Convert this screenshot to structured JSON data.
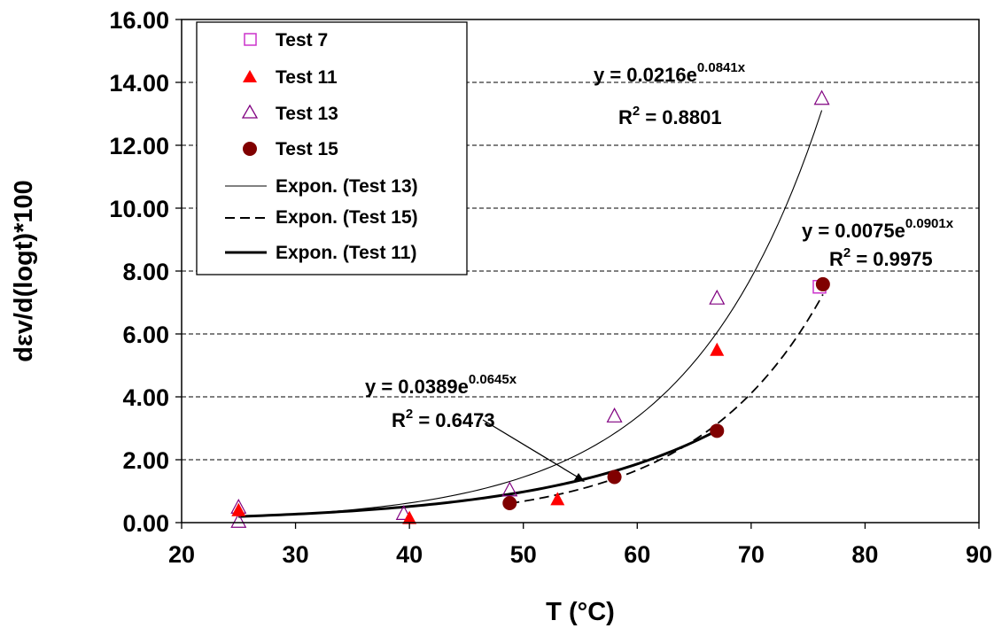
{
  "chart_data": {
    "type": "scatter",
    "title": "",
    "xlabel": "T (°C)",
    "ylabel": "dεv/d(logt)*100",
    "xlim": [
      20,
      90
    ],
    "ylim": [
      0,
      16
    ],
    "x_ticks": [
      "20",
      "30",
      "40",
      "50",
      "60",
      "70",
      "80",
      "90"
    ],
    "y_ticks": [
      "0.00",
      "2.00",
      "4.00",
      "6.00",
      "8.00",
      "10.00",
      "12.00",
      "14.00",
      "16.00"
    ],
    "grid": "horizontal dashed",
    "legend_position": "top-left",
    "series": [
      {
        "name": "Test 7",
        "marker": "open-square",
        "color": "#cc33cc",
        "points": [
          [
            76,
            7.5
          ]
        ]
      },
      {
        "name": "Test 11",
        "marker": "filled-triangle",
        "color": "#ff0000",
        "points": [
          [
            25,
            0.4
          ],
          [
            40,
            0.15
          ],
          [
            53,
            0.75
          ],
          [
            67,
            5.5
          ]
        ]
      },
      {
        "name": "Test 13",
        "marker": "open-triangle",
        "color": "#800080",
        "points": [
          [
            25,
            0.05
          ],
          [
            25,
            0.5
          ],
          [
            39.5,
            0.3
          ],
          [
            48.8,
            1.05
          ],
          [
            58,
            3.4
          ],
          [
            67,
            7.15
          ],
          [
            76.2,
            13.5
          ]
        ]
      },
      {
        "name": "Test 15",
        "marker": "filled-circle",
        "color": "#800000",
        "points": [
          [
            48.8,
            0.62
          ],
          [
            58,
            1.45
          ],
          [
            67,
            2.92
          ],
          [
            76.3,
            7.58
          ]
        ]
      }
    ],
    "trendlines": [
      {
        "name": "Expon. (Test 13)",
        "style": "thin",
        "a": 0.0216,
        "b": 0.0841,
        "x_range": [
          25,
          76.2
        ],
        "equation": "y = 0.0216e",
        "exponent": "0.0841x",
        "r2_label": "R",
        "r2_sup": "2",
        "r2_value": " = 0.8801"
      },
      {
        "name": "Expon. (Test 15)",
        "style": "dashed",
        "a": 0.0075,
        "b": 0.0901,
        "x_range": [
          48.8,
          76.3
        ],
        "equation": "y = 0.0075e",
        "exponent": "0.0901x",
        "r2_label": "R",
        "r2_sup": "2",
        "r2_value": " = 0.9975"
      },
      {
        "name": "Expon. (Test 11)",
        "style": "thick",
        "a": 0.0389,
        "b": 0.0645,
        "x_range": [
          25,
          67
        ],
        "equation": "y = 0.0389e",
        "exponent": "0.0645x",
        "r2_label": "R",
        "r2_sup": "2",
        "r2_value": " = 0.6473"
      }
    ],
    "legend": [
      "Test 7",
      "Test 11",
      "Test 13",
      "Test 15",
      "Expon. (Test 13)",
      "Expon. (Test 15)",
      "Expon. (Test 11)"
    ]
  }
}
